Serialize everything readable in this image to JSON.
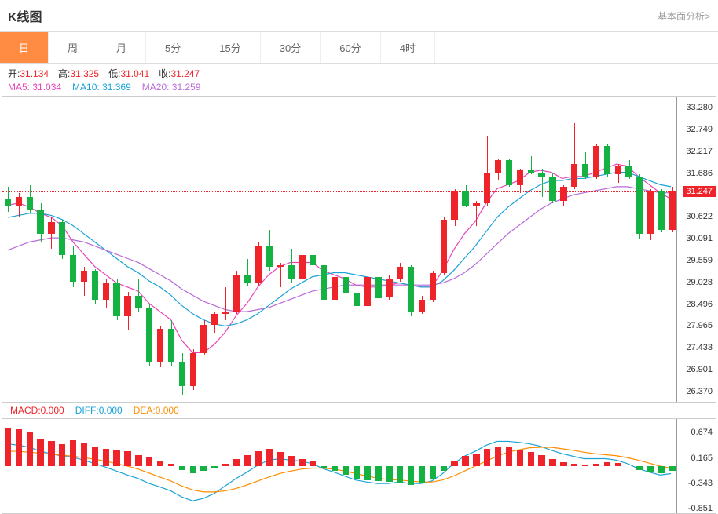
{
  "header": {
    "title": "K线图",
    "link": "基本面分析>"
  },
  "tabs": [
    "日",
    "周",
    "月",
    "5分",
    "15分",
    "30分",
    "60分",
    "4时"
  ],
  "active_tab": 0,
  "ohlc": {
    "open_label": "开:",
    "open": "31.134",
    "high_label": "高:",
    "high": "31.325",
    "low_label": "低:",
    "low": "31.041",
    "close_label": "收:",
    "close": "31.247"
  },
  "ma": {
    "ma5": {
      "label": "MA5:",
      "value": "31.034",
      "color": "#e844b9"
    },
    "ma10": {
      "label": "MA10:",
      "value": "31.369",
      "color": "#1aa3d8"
    },
    "ma20": {
      "label": "MA20:",
      "value": "31.259",
      "color": "#b869d8"
    }
  },
  "macd": {
    "macd": {
      "label": "MACD:",
      "value": "0.000",
      "color": "#ef232a"
    },
    "diff": {
      "label": "DIFF:",
      "value": "0.000",
      "color": "#1aa3d8"
    },
    "dea": {
      "label": "DEA:",
      "value": "0.000",
      "color": "#ff8c00"
    }
  },
  "chart": {
    "type": "candlestick",
    "ylim": [
      26.1,
      33.55
    ],
    "yticks": [
      33.28,
      32.749,
      32.217,
      31.686,
      31.247,
      30.622,
      30.091,
      29.559,
      29.028,
      28.496,
      27.965,
      27.433,
      26.901,
      26.37
    ],
    "price_line": 31.247,
    "up_color": "#ef232a",
    "down_color": "#14b143",
    "candles": [
      {
        "o": 31.05,
        "h": 31.35,
        "l": 30.75,
        "c": 30.9
      },
      {
        "o": 30.9,
        "h": 31.2,
        "l": 30.6,
        "c": 31.1
      },
      {
        "o": 31.1,
        "h": 31.4,
        "l": 30.7,
        "c": 30.8
      },
      {
        "o": 30.8,
        "h": 30.95,
        "l": 30.0,
        "c": 30.2
      },
      {
        "o": 30.2,
        "h": 30.6,
        "l": 29.85,
        "c": 30.5
      },
      {
        "o": 30.5,
        "h": 30.55,
        "l": 29.6,
        "c": 29.7
      },
      {
        "o": 29.7,
        "h": 29.9,
        "l": 28.9,
        "c": 29.05
      },
      {
        "o": 29.05,
        "h": 29.4,
        "l": 28.7,
        "c": 29.3
      },
      {
        "o": 29.3,
        "h": 29.35,
        "l": 28.5,
        "c": 28.6
      },
      {
        "o": 28.6,
        "h": 29.1,
        "l": 28.4,
        "c": 29.0
      },
      {
        "o": 29.0,
        "h": 29.1,
        "l": 28.1,
        "c": 28.2
      },
      {
        "o": 28.2,
        "h": 28.8,
        "l": 27.85,
        "c": 28.7
      },
      {
        "o": 28.7,
        "h": 29.1,
        "l": 28.3,
        "c": 28.4
      },
      {
        "o": 28.4,
        "h": 28.5,
        "l": 27.0,
        "c": 27.1
      },
      {
        "o": 27.1,
        "h": 27.95,
        "l": 26.95,
        "c": 27.9
      },
      {
        "o": 27.9,
        "h": 28.1,
        "l": 27.0,
        "c": 27.1
      },
      {
        "o": 27.1,
        "h": 27.3,
        "l": 26.3,
        "c": 26.5
      },
      {
        "o": 26.5,
        "h": 27.4,
        "l": 26.4,
        "c": 27.3
      },
      {
        "o": 27.3,
        "h": 28.1,
        "l": 27.25,
        "c": 28.0
      },
      {
        "o": 28.0,
        "h": 28.3,
        "l": 27.8,
        "c": 28.25
      },
      {
        "o": 28.25,
        "h": 28.9,
        "l": 28.1,
        "c": 28.3
      },
      {
        "o": 28.3,
        "h": 29.3,
        "l": 28.25,
        "c": 29.2
      },
      {
        "o": 29.2,
        "h": 29.6,
        "l": 28.95,
        "c": 29.0
      },
      {
        "o": 29.0,
        "h": 30.0,
        "l": 28.95,
        "c": 29.9
      },
      {
        "o": 29.9,
        "h": 30.3,
        "l": 29.3,
        "c": 29.4
      },
      {
        "o": 29.4,
        "h": 29.5,
        "l": 28.9,
        "c": 29.45
      },
      {
        "o": 29.45,
        "h": 29.85,
        "l": 29.0,
        "c": 29.1
      },
      {
        "o": 29.1,
        "h": 29.8,
        "l": 29.05,
        "c": 29.7
      },
      {
        "o": 29.7,
        "h": 30.0,
        "l": 29.4,
        "c": 29.45
      },
      {
        "o": 29.45,
        "h": 29.5,
        "l": 28.5,
        "c": 28.6
      },
      {
        "o": 28.6,
        "h": 29.2,
        "l": 28.55,
        "c": 29.15
      },
      {
        "o": 29.15,
        "h": 29.2,
        "l": 28.7,
        "c": 28.75
      },
      {
        "o": 28.75,
        "h": 29.1,
        "l": 28.4,
        "c": 28.45
      },
      {
        "o": 28.45,
        "h": 29.2,
        "l": 28.3,
        "c": 29.15
      },
      {
        "o": 29.15,
        "h": 29.3,
        "l": 28.6,
        "c": 28.65
      },
      {
        "o": 28.65,
        "h": 29.2,
        "l": 28.6,
        "c": 29.1
      },
      {
        "o": 29.1,
        "h": 29.5,
        "l": 29.05,
        "c": 29.4
      },
      {
        "o": 29.4,
        "h": 29.45,
        "l": 28.2,
        "c": 28.3
      },
      {
        "o": 28.3,
        "h": 28.7,
        "l": 28.25,
        "c": 28.6
      },
      {
        "o": 28.6,
        "h": 29.3,
        "l": 28.55,
        "c": 29.25
      },
      {
        "o": 29.25,
        "h": 30.6,
        "l": 29.2,
        "c": 30.55
      },
      {
        "o": 30.55,
        "h": 31.3,
        "l": 30.4,
        "c": 31.25
      },
      {
        "o": 31.25,
        "h": 31.4,
        "l": 30.85,
        "c": 30.9
      },
      {
        "o": 30.9,
        "h": 31.0,
        "l": 30.4,
        "c": 30.95
      },
      {
        "o": 30.95,
        "h": 32.6,
        "l": 30.9,
        "c": 31.7
      },
      {
        "o": 31.7,
        "h": 32.05,
        "l": 31.5,
        "c": 32.0
      },
      {
        "o": 32.0,
        "h": 32.05,
        "l": 31.35,
        "c": 31.4
      },
      {
        "o": 31.4,
        "h": 31.8,
        "l": 31.2,
        "c": 31.75
      },
      {
        "o": 31.75,
        "h": 32.1,
        "l": 31.65,
        "c": 31.7
      },
      {
        "o": 31.7,
        "h": 31.8,
        "l": 31.1,
        "c": 31.6
      },
      {
        "o": 31.6,
        "h": 31.7,
        "l": 30.95,
        "c": 31.0
      },
      {
        "o": 31.0,
        "h": 31.4,
        "l": 30.9,
        "c": 31.35
      },
      {
        "o": 31.35,
        "h": 32.9,
        "l": 31.3,
        "c": 31.9
      },
      {
        "o": 31.9,
        "h": 32.2,
        "l": 31.55,
        "c": 31.6
      },
      {
        "o": 31.6,
        "h": 32.4,
        "l": 31.55,
        "c": 32.35
      },
      {
        "o": 32.35,
        "h": 32.4,
        "l": 31.6,
        "c": 31.65
      },
      {
        "o": 31.65,
        "h": 31.9,
        "l": 31.45,
        "c": 31.85
      },
      {
        "o": 31.85,
        "h": 32.0,
        "l": 31.55,
        "c": 31.6
      },
      {
        "o": 31.6,
        "h": 31.65,
        "l": 30.1,
        "c": 30.2
      },
      {
        "o": 30.2,
        "h": 31.3,
        "l": 30.05,
        "c": 31.25
      },
      {
        "o": 31.25,
        "h": 31.3,
        "l": 30.25,
        "c": 30.3
      },
      {
        "o": 30.3,
        "h": 31.35,
        "l": 30.25,
        "c": 31.25
      }
    ],
    "ma5_line": [
      30.9,
      30.95,
      30.85,
      30.7,
      30.6,
      30.4,
      30.0,
      29.7,
      29.4,
      29.2,
      29.0,
      28.9,
      28.8,
      28.5,
      28.3,
      28.1,
      27.6,
      27.3,
      27.3,
      27.5,
      27.8,
      28.2,
      28.5,
      28.9,
      29.2,
      29.4,
      29.5,
      29.5,
      29.5,
      29.3,
      29.2,
      29.1,
      28.95,
      28.9,
      28.9,
      28.95,
      29.0,
      28.95,
      28.9,
      28.9,
      29.3,
      29.8,
      30.2,
      30.5,
      30.95,
      31.3,
      31.4,
      31.5,
      31.7,
      31.75,
      31.7,
      31.55,
      31.6,
      31.6,
      31.7,
      31.8,
      31.9,
      31.85,
      31.6,
      31.4,
      31.2,
      31.05
    ],
    "ma10_line": [
      30.6,
      30.65,
      30.7,
      30.7,
      30.65,
      30.55,
      30.4,
      30.2,
      30.0,
      29.8,
      29.6,
      29.4,
      29.25,
      29.05,
      28.9,
      28.7,
      28.45,
      28.25,
      28.1,
      28.0,
      27.95,
      28.0,
      28.1,
      28.25,
      28.45,
      28.65,
      28.85,
      29.0,
      29.15,
      29.2,
      29.25,
      29.25,
      29.2,
      29.15,
      29.1,
      29.05,
      29.0,
      28.95,
      28.9,
      28.9,
      29.05,
      29.3,
      29.6,
      29.9,
      30.25,
      30.6,
      30.85,
      31.05,
      31.25,
      31.4,
      31.5,
      31.5,
      31.55,
      31.55,
      31.6,
      31.65,
      31.7,
      31.7,
      31.6,
      31.5,
      31.4,
      31.35
    ],
    "ma20_line": [
      29.8,
      29.9,
      30.0,
      30.05,
      30.1,
      30.1,
      30.05,
      30.0,
      29.9,
      29.8,
      29.7,
      29.6,
      29.5,
      29.35,
      29.2,
      29.05,
      28.85,
      28.7,
      28.55,
      28.45,
      28.35,
      28.3,
      28.3,
      28.35,
      28.4,
      28.5,
      28.6,
      28.7,
      28.8,
      28.85,
      28.9,
      28.95,
      28.95,
      28.95,
      28.95,
      28.95,
      28.95,
      28.95,
      28.95,
      28.95,
      29.0,
      29.1,
      29.25,
      29.45,
      29.7,
      29.95,
      30.2,
      30.4,
      30.6,
      30.8,
      30.95,
      31.05,
      31.15,
      31.2,
      31.25,
      31.3,
      31.35,
      31.35,
      31.3,
      31.25,
      31.2,
      31.2
    ]
  },
  "macd_chart": {
    "ylim": [
      -0.95,
      0.95
    ],
    "yticks": [
      0.674,
      0.165,
      -0.343,
      -0.851
    ],
    "bars": [
      0.78,
      0.74,
      0.7,
      0.55,
      0.5,
      0.45,
      0.52,
      0.48,
      0.38,
      0.35,
      0.32,
      0.3,
      0.22,
      0.18,
      0.1,
      0.05,
      -0.08,
      -0.15,
      -0.1,
      -0.05,
      0.05,
      0.15,
      0.22,
      0.3,
      0.35,
      0.28,
      0.2,
      0.15,
      0.1,
      -0.05,
      -0.1,
      -0.18,
      -0.25,
      -0.28,
      -0.3,
      -0.32,
      -0.35,
      -0.38,
      -0.35,
      -0.25,
      -0.1,
      0.1,
      0.2,
      0.25,
      0.35,
      0.4,
      0.38,
      0.32,
      0.28,
      0.22,
      0.15,
      0.08,
      0.05,
      0.02,
      0.05,
      0.08,
      0.06,
      0.0,
      -0.08,
      -0.12,
      -0.14,
      -0.1
    ],
    "diff_line": [
      0.45,
      0.42,
      0.38,
      0.3,
      0.25,
      0.2,
      0.18,
      0.12,
      0.05,
      -0.02,
      -0.1,
      -0.18,
      -0.25,
      -0.35,
      -0.42,
      -0.5,
      -0.62,
      -0.7,
      -0.65,
      -0.55,
      -0.4,
      -0.25,
      -0.12,
      0.02,
      0.12,
      0.15,
      0.12,
      0.1,
      0.05,
      -0.05,
      -0.12,
      -0.2,
      -0.28,
      -0.32,
      -0.35,
      -0.35,
      -0.32,
      -0.35,
      -0.35,
      -0.3,
      -0.15,
      0.05,
      0.2,
      0.3,
      0.42,
      0.5,
      0.5,
      0.48,
      0.45,
      0.4,
      0.32,
      0.25,
      0.2,
      0.15,
      0.15,
      0.15,
      0.12,
      0.05,
      -0.05,
      -0.12,
      -0.18,
      -0.15
    ],
    "dea_line": [
      0.3,
      0.3,
      0.28,
      0.26,
      0.24,
      0.22,
      0.2,
      0.17,
      0.14,
      0.1,
      0.05,
      0.0,
      -0.06,
      -0.14,
      -0.22,
      -0.3,
      -0.4,
      -0.48,
      -0.52,
      -0.52,
      -0.5,
      -0.45,
      -0.38,
      -0.3,
      -0.22,
      -0.15,
      -0.1,
      -0.06,
      -0.04,
      -0.04,
      -0.06,
      -0.1,
      -0.15,
      -0.2,
      -0.24,
      -0.27,
      -0.28,
      -0.3,
      -0.32,
      -0.32,
      -0.28,
      -0.2,
      -0.1,
      0.0,
      0.1,
      0.2,
      0.28,
      0.33,
      0.37,
      0.38,
      0.38,
      0.35,
      0.32,
      0.28,
      0.25,
      0.23,
      0.21,
      0.17,
      0.12,
      0.06,
      0.0,
      -0.04
    ]
  }
}
